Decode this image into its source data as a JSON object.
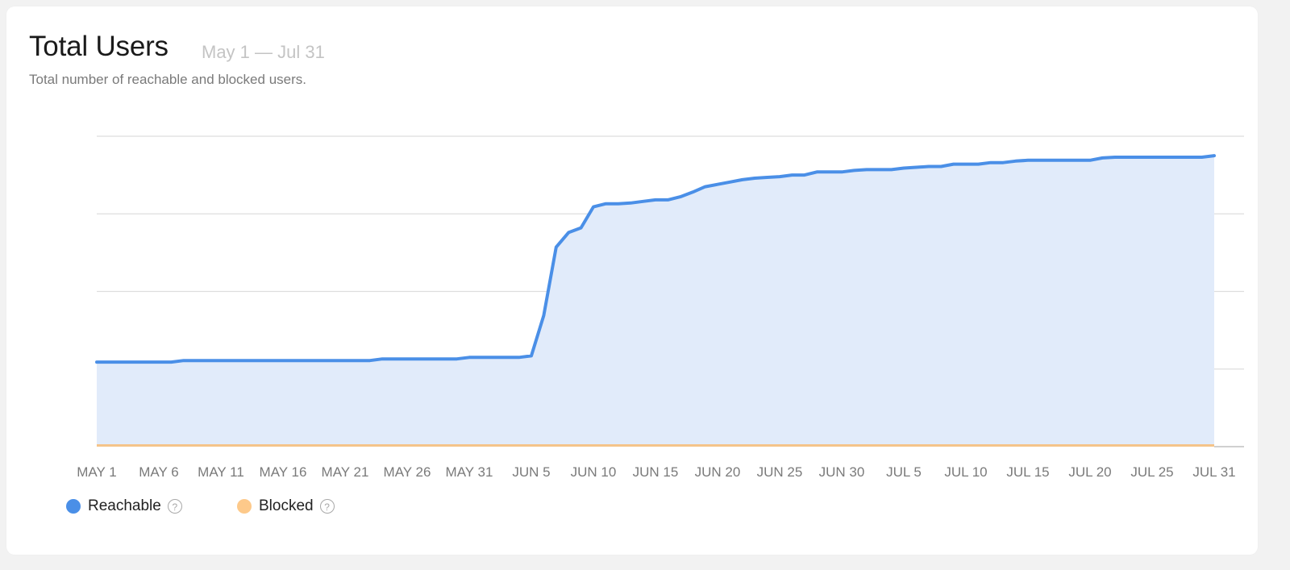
{
  "header": {
    "title": "Total Users",
    "date_range": "May 1 — Jul 31",
    "subtitle": "Total number of reachable and blocked users."
  },
  "legend": [
    {
      "label": "Reachable",
      "color": "#4a8fe7",
      "help_icon": "question-circle-icon"
    },
    {
      "label": "Blocked",
      "color": "#fdc98a",
      "help_icon": "question-circle-icon"
    }
  ],
  "chart_data": {
    "type": "area",
    "grid": true,
    "ylim": [
      0,
      4
    ],
    "x_ticks": [
      "MAY 1",
      "MAY 6",
      "MAY 11",
      "MAY 16",
      "MAY 21",
      "MAY 26",
      "MAY 31",
      "JUN 5",
      "JUN 10",
      "JUN 15",
      "JUN 20",
      "JUN 25",
      "JUN 30",
      "JUL 5",
      "JUL 10",
      "JUL 15",
      "JUL 20",
      "JUL 25",
      "JUL 31"
    ],
    "series": [
      {
        "name": "Reachable",
        "color": "#4a8fe7",
        "fill": "#e1ebfa",
        "values": [
          1.09,
          1.09,
          1.09,
          1.09,
          1.09,
          1.09,
          1.09,
          1.11,
          1.11,
          1.11,
          1.11,
          1.11,
          1.11,
          1.11,
          1.11,
          1.11,
          1.11,
          1.11,
          1.11,
          1.11,
          1.11,
          1.11,
          1.11,
          1.13,
          1.13,
          1.13,
          1.13,
          1.13,
          1.13,
          1.13,
          1.15,
          1.15,
          1.15,
          1.15,
          1.15,
          1.17,
          1.69,
          2.57,
          2.76,
          2.82,
          3.09,
          3.13,
          3.13,
          3.14,
          3.16,
          3.18,
          3.18,
          3.22,
          3.28,
          3.35,
          3.38,
          3.41,
          3.44,
          3.46,
          3.47,
          3.48,
          3.5,
          3.5,
          3.54,
          3.54,
          3.54,
          3.56,
          3.57,
          3.57,
          3.57,
          3.59,
          3.6,
          3.61,
          3.61,
          3.64,
          3.64,
          3.64,
          3.66,
          3.66,
          3.68,
          3.69,
          3.69,
          3.69,
          3.69,
          3.69,
          3.69,
          3.72,
          3.73,
          3.73,
          3.73,
          3.73,
          3.73,
          3.73,
          3.73,
          3.73,
          3.75
        ]
      },
      {
        "name": "Blocked",
        "color": "#f5c48a",
        "values": [
          0.02
        ]
      }
    ]
  }
}
